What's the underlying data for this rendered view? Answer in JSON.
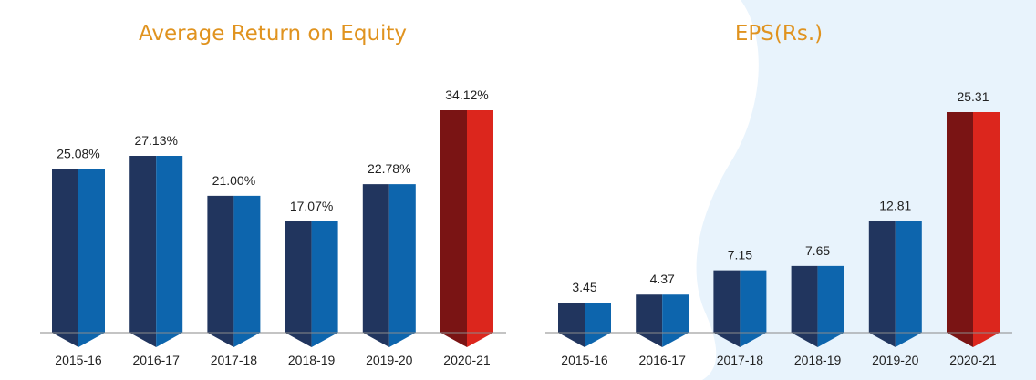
{
  "colors": {
    "title": "#e0931f",
    "bar_left": "#21355e",
    "bar_right": "#0d65ad",
    "highlight_left": "#7a1414",
    "highlight_right": "#dc261d",
    "axis": "#8a8a8a",
    "backdrop": "#e8f3fc"
  },
  "chart_data": [
    {
      "type": "bar",
      "title": "Average Return on Equity",
      "categories": [
        "2015-16",
        "2016-17",
        "2017-18",
        "2018-19",
        "2019-20",
        "2020-21"
      ],
      "values": [
        25.08,
        27.13,
        21.0,
        17.07,
        22.78,
        34.12
      ],
      "value_labels": [
        "25.08%",
        "27.13%",
        "21.00%",
        "17.07%",
        "22.78%",
        "34.12%"
      ],
      "highlight_index": 5,
      "ylim": [
        0,
        34.12
      ],
      "grid": false,
      "legend": "none"
    },
    {
      "type": "bar",
      "title": "EPS(Rs.)",
      "categories": [
        "2015-16",
        "2016-17",
        "2017-18",
        "2018-19",
        "2019-20",
        "2020-21"
      ],
      "values": [
        3.45,
        4.37,
        7.15,
        7.65,
        12.81,
        25.31
      ],
      "value_labels": [
        "3.45",
        "4.37",
        "7.15",
        "7.65",
        "12.81",
        "25.31"
      ],
      "highlight_index": 5,
      "ylim": [
        0,
        25.31
      ],
      "grid": false,
      "legend": "none"
    }
  ]
}
